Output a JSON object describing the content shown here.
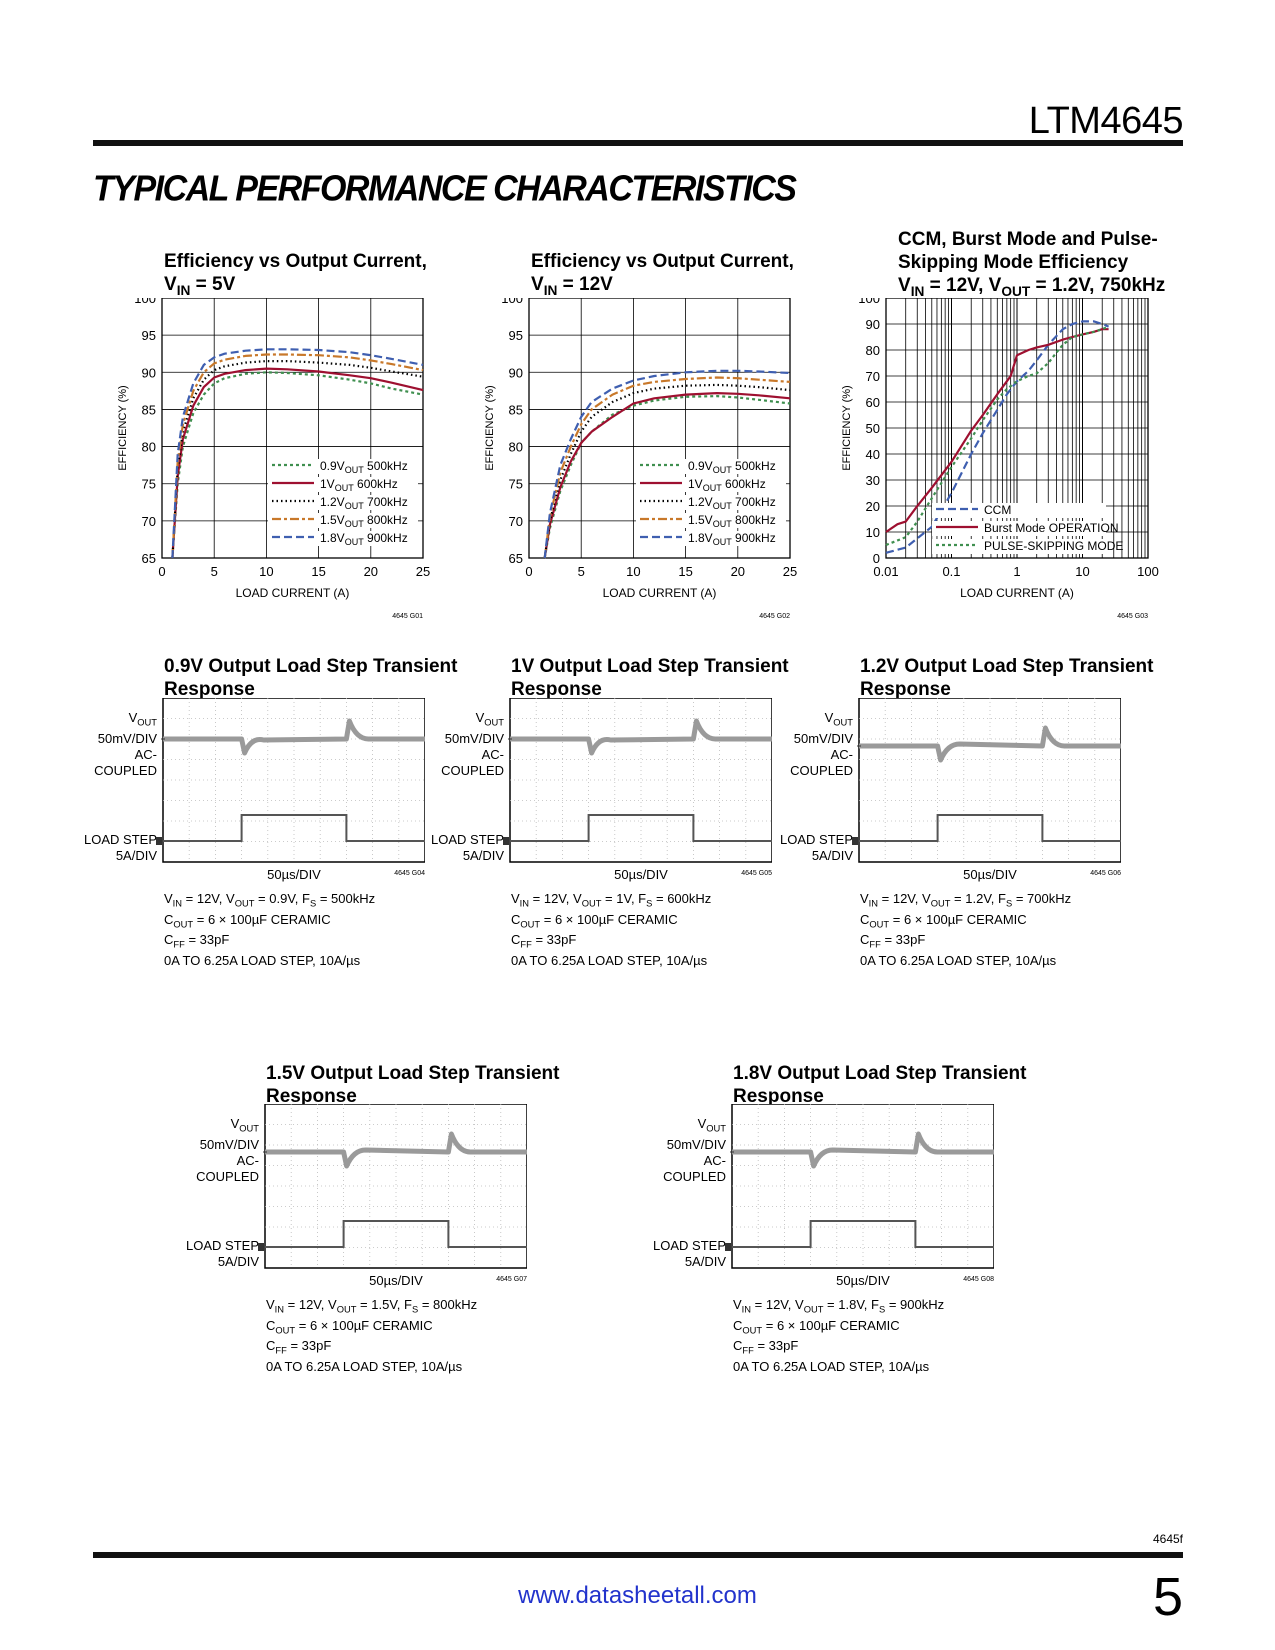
{
  "header": {
    "part_number": "LTM4645",
    "section_title": "TYPICAL PERFORMANCE CHARACTERISTICS"
  },
  "footer": {
    "doc_ref": "4645f",
    "url": "www.datasheetall.com",
    "page_number": "5"
  },
  "colors": {
    "green": "#3f8f4f",
    "red": "#9e1030",
    "black": "#000000",
    "orange": "#c8782a",
    "blue": "#3f5fb0",
    "trace": "#9a9a9a"
  },
  "chart_data": [
    {
      "id": "G01",
      "type": "line",
      "title_l1": "Efficiency vs Output Current,",
      "title_l2": "= 5V",
      "xlabel": "LOAD CURRENT (A)",
      "ylabel": "EFFICIENCY (%)",
      "xlim": [
        0,
        25
      ],
      "ylim": [
        65,
        100
      ],
      "xticks": [
        0,
        5,
        10,
        15,
        20,
        25
      ],
      "yticks": [
        65,
        70,
        75,
        80,
        85,
        90,
        95,
        100
      ],
      "code": "4645 G01",
      "series": [
        {
          "name": "0.9V",
          "suffix": "500kHz",
          "style": "green",
          "x": [
            1,
            1.5,
            2,
            3,
            4,
            5,
            6,
            8,
            10,
            12,
            15,
            18,
            20,
            22,
            25
          ],
          "y": [
            65,
            75,
            80,
            84.5,
            87,
            88.5,
            89.2,
            89.8,
            90,
            89.9,
            89.6,
            89,
            88.5,
            87.8,
            87
          ]
        },
        {
          "name": "1V",
          "suffix": "600kHz",
          "style": "red",
          "x": [
            1,
            1.5,
            2,
            3,
            4,
            5,
            6,
            8,
            10,
            12,
            15,
            18,
            20,
            22,
            25
          ],
          "y": [
            65,
            76,
            81,
            85.5,
            88,
            89.3,
            89.8,
            90.3,
            90.5,
            90.4,
            90.1,
            89.6,
            89.2,
            88.6,
            87.6
          ]
        },
        {
          "name": "1.2V",
          "suffix": "700kHz",
          "style": "black",
          "x": [
            1,
            1.5,
            2,
            3,
            4,
            5,
            6,
            8,
            10,
            12,
            15,
            18,
            20,
            22,
            25
          ],
          "y": [
            65,
            77,
            82,
            86.5,
            89,
            90.3,
            90.8,
            91.3,
            91.5,
            91.5,
            91.3,
            91,
            90.6,
            90.1,
            89.4
          ]
        },
        {
          "name": "1.5V",
          "suffix": "800kHz",
          "style": "orange",
          "x": [
            1,
            1.5,
            2,
            3,
            4,
            5,
            6,
            8,
            10,
            12,
            15,
            18,
            20,
            22,
            25
          ],
          "y": [
            65,
            78,
            83,
            87.5,
            90,
            91.2,
            91.7,
            92.2,
            92.4,
            92.4,
            92.3,
            92,
            91.6,
            91.1,
            90.3
          ]
        },
        {
          "name": "1.8V",
          "suffix": "900kHz",
          "style": "blue",
          "x": [
            1,
            1.5,
            2,
            3,
            4,
            5,
            6,
            8,
            10,
            12,
            15,
            18,
            20,
            22,
            25
          ],
          "y": [
            65,
            79,
            84,
            88.5,
            91,
            92,
            92.5,
            92.9,
            93.1,
            93.1,
            93,
            92.7,
            92.3,
            91.8,
            91
          ]
        }
      ]
    },
    {
      "id": "G02",
      "type": "line",
      "title_l1": "Efficiency vs Output Current,",
      "title_l2": "= 12V",
      "xlabel": "LOAD CURRENT (A)",
      "ylabel": "EFFICIENCY (%)",
      "xlim": [
        0,
        25
      ],
      "ylim": [
        65,
        100
      ],
      "xticks": [
        0,
        5,
        10,
        15,
        20,
        25
      ],
      "yticks": [
        65,
        70,
        75,
        80,
        85,
        90,
        95,
        100
      ],
      "code": "4645 G02",
      "series": [
        {
          "name": "0.9V",
          "suffix": "500kHz",
          "style": "green",
          "x": [
            1.5,
            2,
            3,
            4,
            5,
            6,
            8,
            10,
            12,
            15,
            18,
            20,
            22,
            25
          ],
          "y": [
            65,
            69,
            74,
            77.5,
            80.5,
            82,
            84.3,
            85.5,
            86.2,
            86.7,
            86.8,
            86.6,
            86.3,
            85.8
          ]
        },
        {
          "name": "1V",
          "suffix": "600kHz",
          "style": "red",
          "x": [
            1.5,
            2,
            3,
            4,
            5,
            6,
            8,
            10,
            12,
            15,
            18,
            20,
            22,
            25
          ],
          "y": [
            65,
            69.5,
            74.5,
            78,
            80.5,
            82,
            84,
            85.8,
            86.5,
            87,
            87.2,
            87.1,
            86.9,
            86.5
          ]
        },
        {
          "name": "1.2V",
          "suffix": "700kHz",
          "style": "black",
          "x": [
            1.5,
            2,
            3,
            4,
            5,
            6,
            8,
            10,
            12,
            15,
            18,
            20,
            22,
            25
          ],
          "y": [
            65,
            70,
            75.5,
            79,
            82,
            84,
            86,
            87.2,
            87.8,
            88.2,
            88.3,
            88.2,
            88,
            87.6
          ]
        },
        {
          "name": "1.5V",
          "suffix": "800kHz",
          "style": "orange",
          "x": [
            1.5,
            2,
            3,
            4,
            5,
            6,
            8,
            10,
            12,
            15,
            18,
            20,
            22,
            25
          ],
          "y": [
            65,
            70.5,
            76.5,
            80,
            83,
            85,
            87,
            88.2,
            88.7,
            89.1,
            89.3,
            89.2,
            89,
            88.7
          ]
        },
        {
          "name": "1.8V",
          "suffix": "900kHz",
          "style": "blue",
          "x": [
            1.5,
            2,
            3,
            4,
            5,
            6,
            8,
            10,
            12,
            15,
            18,
            20,
            22,
            25
          ],
          "y": [
            65,
            71,
            77.5,
            81,
            84,
            86,
            87.8,
            88.9,
            89.5,
            90,
            90.2,
            90.2,
            90.1,
            89.9
          ]
        }
      ]
    },
    {
      "id": "G03",
      "type": "line",
      "title_l1": "CCM, Burst Mode and Pulse-",
      "title_l2": "Skipping Mode Efficiency",
      "title_l3a": "= 12V, V",
      "title_l3b": "= 1.2V, 750kHz",
      "xlabel": "LOAD CURRENT (A)",
      "ylabel": "EFFICIENCY (%)",
      "xscale": "log",
      "xlim": [
        0.01,
        100
      ],
      "ylim": [
        0,
        100
      ],
      "xticks": [
        "0.01",
        "0.1",
        "1",
        "10",
        "100"
      ],
      "yticks": [
        0,
        10,
        20,
        30,
        40,
        50,
        60,
        70,
        80,
        90,
        100
      ],
      "code": "4645 G03",
      "series": [
        {
          "name": "CCM",
          "style": "blue",
          "x": [
            0.01,
            0.02,
            0.05,
            0.1,
            0.2,
            0.3,
            0.5,
            0.7,
            1,
            1.5,
            2,
            3,
            5,
            7,
            10,
            15,
            20,
            25
          ],
          "y": [
            2,
            4,
            12,
            25,
            40,
            48,
            57,
            63,
            68,
            72,
            76,
            82,
            88,
            90,
            91,
            91,
            90,
            89
          ]
        },
        {
          "name": "Burst Mode OPERATION",
          "style": "red",
          "x": [
            0.01,
            0.015,
            0.02,
            0.03,
            0.05,
            0.1,
            0.2,
            0.3,
            0.5,
            0.7,
            0.8,
            1,
            1.5,
            2,
            3,
            5,
            7,
            10,
            15,
            20,
            25
          ],
          "y": [
            10,
            13,
            14,
            20,
            27,
            37,
            49,
            55,
            63,
            68,
            70,
            78,
            80,
            81,
            82,
            84,
            85,
            86,
            87,
            88,
            88
          ]
        },
        {
          "name": "PULSE-SKIPPING MODE",
          "style": "green",
          "x": [
            0.01,
            0.02,
            0.03,
            0.05,
            0.1,
            0.2,
            0.3,
            0.5,
            0.7,
            1,
            1.5,
            2,
            3,
            4,
            5,
            7,
            10,
            15,
            20,
            25
          ],
          "y": [
            5,
            8,
            14,
            23,
            35,
            46,
            53,
            61,
            65,
            68,
            70,
            71,
            75,
            79,
            82,
            85,
            86,
            87,
            88,
            89
          ]
        }
      ]
    }
  ],
  "scopes": [
    {
      "id": "G04",
      "title_l1": "0.9V Output Load Step Transient",
      "title_l2": "Response",
      "vout_div": "50mV/DIV",
      "ac_l1": "AC-",
      "ac_l2": "COUPLED",
      "ls_l1": "LOAD STEP",
      "ls_l2": "5A/DIV",
      "timebase": "50µs/DIV",
      "code": "4645 G04",
      "cond_vin": "= 12V, V",
      "cond_vout": "= 0.9V, F",
      "cond_fs": "= 500kHz",
      "cond2": "= 6 × 100µF CERAMIC",
      "cond3": "= 33pF",
      "cond4": "0A TO 6.25A LOAD STEP, 10A/µs"
    },
    {
      "id": "G05",
      "title_l1": "1V Output Load Step Transient",
      "title_l2": "Response",
      "vout_div": "50mV/DIV",
      "ac_l1": "AC-",
      "ac_l2": "COUPLED",
      "ls_l1": "LOAD STEP",
      "ls_l2": "5A/DIV",
      "timebase": "50µs/DIV",
      "code": "4645 G05",
      "cond_vin": "= 12V, V",
      "cond_vout": "= 1V, F",
      "cond_fs": "= 600kHz",
      "cond2": "= 6 × 100µF CERAMIC",
      "cond3": "= 33pF",
      "cond4": "0A TO 6.25A LOAD STEP, 10A/µs"
    },
    {
      "id": "G06",
      "title_l1": "1.2V Output Load Step Transient",
      "title_l2": "Response",
      "vout_div": "50mV/DIV",
      "ac_l1": "AC-",
      "ac_l2": "COUPLED",
      "ls_l1": "LOAD STEP",
      "ls_l2": "5A/DIV",
      "timebase": "50µs/DIV",
      "code": "4645 G06",
      "cond_vin": "= 12V, V",
      "cond_vout": "= 1.2V, F",
      "cond_fs": "= 700kHz",
      "cond2": "= 6 × 100µF CERAMIC",
      "cond3": "= 33pF",
      "cond4": "0A TO 6.25A LOAD STEP, 10A/µs"
    },
    {
      "id": "G07",
      "title_l1": "1.5V Output Load Step Transient",
      "title_l2": "Response",
      "vout_div": "50mV/DIV",
      "ac_l1": "AC-",
      "ac_l2": "COUPLED",
      "ls_l1": "LOAD STEP",
      "ls_l2": "5A/DIV",
      "timebase": "50µs/DIV",
      "code": "4645 G07",
      "cond_vin": "= 12V, V",
      "cond_vout": "= 1.5V, F",
      "cond_fs": "= 800kHz",
      "cond2": "= 6 × 100µF CERAMIC",
      "cond3": "= 33pF",
      "cond4": "0A TO 6.25A LOAD STEP, 10A/µs"
    },
    {
      "id": "G08",
      "title_l1": "1.8V Output Load Step Transient",
      "title_l2": "Response",
      "vout_div": "50mV/DIV",
      "ac_l1": "AC-",
      "ac_l2": "COUPLED",
      "ls_l1": "LOAD STEP",
      "ls_l2": "5A/DIV",
      "timebase": "50µs/DIV",
      "code": "4645 G08",
      "cond_vin": "= 12V, V",
      "cond_vout": "= 1.8V, F",
      "cond_fs": "= 900kHz",
      "cond2": "= 6 × 100µF CERAMIC",
      "cond3": "= 33pF",
      "cond4": "0A TO 6.25A LOAD STEP, 10A/µs"
    }
  ]
}
